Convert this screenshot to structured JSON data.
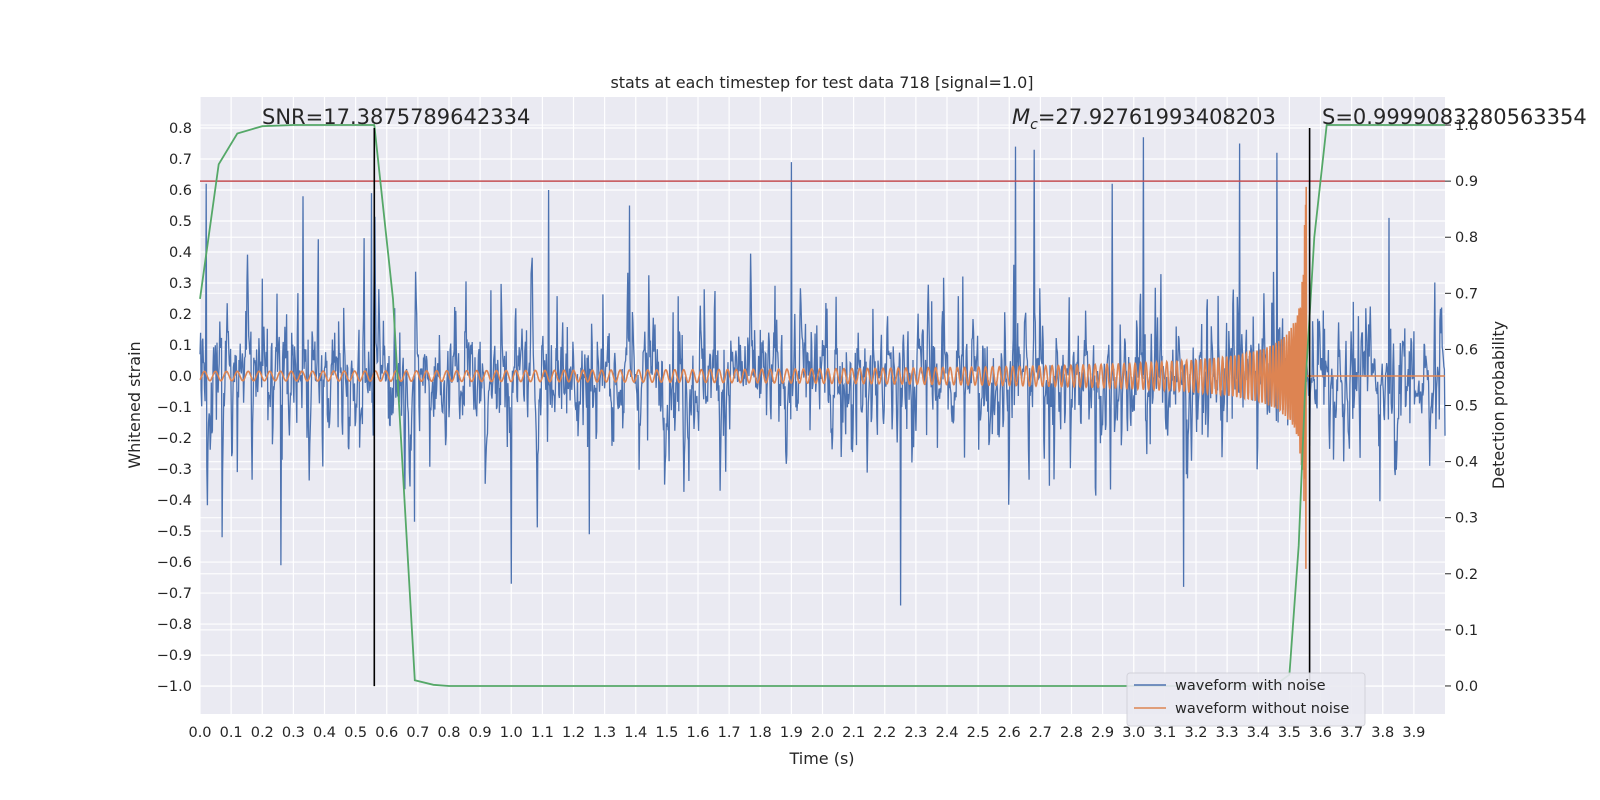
{
  "chart_data": {
    "type": "line",
    "title": "stats at each timestep for test data 718 [signal=1.0]",
    "xlabel": "Time (s)",
    "ylabel": "Whitened strain",
    "y2label": "Detection probability",
    "xlim": [
      0.0,
      4.0
    ],
    "ylim": [
      -1.09,
      0.9
    ],
    "y2lim": [
      -0.05,
      1.05
    ],
    "grid": true,
    "background": "#eaeaf2",
    "x_ticks": [
      "0.0",
      "0.1",
      "0.2",
      "0.3",
      "0.4",
      "0.5",
      "0.6",
      "0.7",
      "0.8",
      "0.9",
      "1.0",
      "1.1",
      "1.2",
      "1.3",
      "1.4",
      "1.5",
      "1.6",
      "1.7",
      "1.8",
      "1.9",
      "2.0",
      "2.1",
      "2.2",
      "2.3",
      "2.4",
      "2.5",
      "2.6",
      "2.7",
      "2.8",
      "2.9",
      "3.0",
      "3.1",
      "3.2",
      "3.3",
      "3.4",
      "3.5",
      "3.6",
      "3.7",
      "3.8",
      "3.9"
    ],
    "y_ticks": [
      "0.8",
      "0.7",
      "0.6",
      "0.5",
      "0.4",
      "0.3",
      "0.2",
      "0.1",
      "0.0",
      "−0.1",
      "−0.2",
      "−0.3",
      "−0.4",
      "−0.5",
      "−0.6",
      "−0.7",
      "−0.8",
      "−0.9",
      "−1.0"
    ],
    "y2_ticks": [
      "1.0",
      "0.9",
      "0.8",
      "0.7",
      "0.6",
      "0.5",
      "0.4",
      "0.3",
      "0.2",
      "0.1",
      "0.0"
    ],
    "annotations": {
      "snr": "SNR=17.3875789642334",
      "mc_symbol": "M",
      "mc_sub": "c",
      "mc_value": "=27.92761993408203",
      "s": "S=0.9999083280563354"
    },
    "legend": {
      "position": "lower-right",
      "entries": [
        "waveform with noise",
        "waveform without noise"
      ]
    },
    "series": [
      {
        "name": "waveform with noise",
        "color": "#4c72b0",
        "axis": "left",
        "kind": "noise",
        "amplitude_envelope": 0.45,
        "peaks": [
          {
            "x": 0.02,
            "y": 0.62
          },
          {
            "x": 0.07,
            "y": -0.52
          },
          {
            "x": 0.26,
            "y": -0.61
          },
          {
            "x": 0.33,
            "y": 0.58
          },
          {
            "x": 0.55,
            "y": 0.59
          },
          {
            "x": 0.69,
            "y": -0.47
          },
          {
            "x": 1.0,
            "y": -0.67
          },
          {
            "x": 1.12,
            "y": 0.6
          },
          {
            "x": 1.25,
            "y": -0.51
          },
          {
            "x": 1.38,
            "y": 0.55
          },
          {
            "x": 1.9,
            "y": 0.69
          },
          {
            "x": 2.25,
            "y": -0.74
          },
          {
            "x": 2.62,
            "y": 0.74
          },
          {
            "x": 2.68,
            "y": 0.73
          },
          {
            "x": 2.93,
            "y": 0.62
          },
          {
            "x": 3.03,
            "y": 0.77
          },
          {
            "x": 3.16,
            "y": -0.68
          },
          {
            "x": 3.34,
            "y": 0.75
          },
          {
            "x": 3.46,
            "y": 0.72
          },
          {
            "x": 3.82,
            "y": 0.51
          }
        ]
      },
      {
        "name": "waveform without noise",
        "color": "#dd8452",
        "axis": "left",
        "kind": "chirp",
        "coalescence_time": 3.555,
        "peak_amplitude": 0.8,
        "start_amplitude": 0.015
      },
      {
        "name": "detection probability",
        "color": "#55a868",
        "axis": "right",
        "x": [
          0.0,
          0.06,
          0.12,
          0.2,
          0.3,
          0.4,
          0.5,
          0.56,
          0.62,
          0.69,
          0.75,
          0.8,
          1.0,
          1.5,
          2.0,
          2.5,
          3.0,
          3.3,
          3.45,
          3.5,
          3.53,
          3.55,
          3.58,
          3.62,
          3.7,
          3.8,
          3.9,
          4.0
        ],
        "values": [
          0.69,
          0.93,
          0.985,
          0.998,
          1.0,
          1.0,
          1.0,
          1.0,
          0.69,
          0.01,
          0.002,
          0.0,
          0.0,
          0.0,
          0.0,
          0.0,
          0.0,
          0.0,
          0.0,
          0.02,
          0.25,
          0.52,
          0.8,
          1.0,
          1.0,
          1.0,
          1.0,
          1.0
        ]
      }
    ],
    "threshold": {
      "axis": "right",
      "value": 0.9,
      "color": "#c44e52"
    },
    "vertical_markers": [
      {
        "x": 0.56,
        "y_from": -1.0,
        "y_to": 0.8,
        "color": "#000000"
      },
      {
        "x": 3.565,
        "y_from": -1.0,
        "y_to": 0.8,
        "color": "#000000"
      }
    ]
  }
}
